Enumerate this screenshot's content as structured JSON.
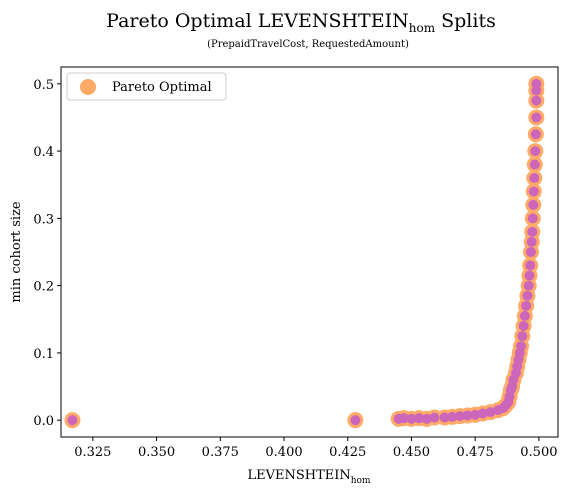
{
  "chart_data": {
    "type": "scatter",
    "title_main": "Pareto Optimal LEVENSHTEIN",
    "title_sub_script": "hom",
    "title_tail": " Splits",
    "subtitle": "(PrepaidTravelCost, RequestedAmount)",
    "xlabel_main": "LEVENSHTEIN",
    "xlabel_sub": "hom",
    "ylabel": "min cohort size",
    "xlim": [
      0.3125,
      0.5075
    ],
    "ylim": [
      -0.025,
      0.525
    ],
    "xticks": [
      0.325,
      0.35,
      0.375,
      0.4,
      0.425,
      0.45,
      0.475,
      0.5
    ],
    "xtick_labels": [
      "0.325",
      "0.350",
      "0.375",
      "0.400",
      "0.425",
      "0.450",
      "0.475",
      "0.500"
    ],
    "yticks": [
      0.0,
      0.1,
      0.2,
      0.3,
      0.4,
      0.5
    ],
    "ytick_labels": [
      "0.0",
      "0.1",
      "0.2",
      "0.3",
      "0.4",
      "0.5"
    ],
    "grid": false,
    "legend": {
      "placement": "top-left",
      "entries": [
        "Pareto Optimal"
      ]
    },
    "colors": {
      "pareto": "#ffaa66",
      "points": "#cc66bb",
      "axis": "#000000"
    },
    "series": [
      {
        "name": "Pareto Optimal",
        "points": [
          [
            0.317,
            0.0
          ],
          [
            0.428,
            0.0
          ],
          [
            0.445,
            0.002
          ],
          [
            0.447,
            0.003
          ],
          [
            0.45,
            0.002
          ],
          [
            0.453,
            0.003
          ],
          [
            0.456,
            0.002
          ],
          [
            0.459,
            0.004
          ],
          [
            0.463,
            0.004
          ],
          [
            0.466,
            0.005
          ],
          [
            0.469,
            0.006
          ],
          [
            0.472,
            0.007
          ],
          [
            0.475,
            0.008
          ],
          [
            0.478,
            0.01
          ],
          [
            0.481,
            0.012
          ],
          [
            0.484,
            0.015
          ],
          [
            0.486,
            0.018
          ],
          [
            0.487,
            0.022
          ],
          [
            0.488,
            0.027
          ],
          [
            0.4885,
            0.035
          ],
          [
            0.489,
            0.045
          ],
          [
            0.4895,
            0.05
          ],
          [
            0.49,
            0.06
          ],
          [
            0.491,
            0.07
          ],
          [
            0.4915,
            0.08
          ],
          [
            0.492,
            0.09
          ],
          [
            0.4925,
            0.1
          ],
          [
            0.493,
            0.11
          ],
          [
            0.4935,
            0.125
          ],
          [
            0.494,
            0.14
          ],
          [
            0.4945,
            0.155
          ],
          [
            0.495,
            0.17
          ],
          [
            0.4955,
            0.185
          ],
          [
            0.496,
            0.2
          ],
          [
            0.4963,
            0.215
          ],
          [
            0.4966,
            0.23
          ],
          [
            0.4969,
            0.25
          ],
          [
            0.4972,
            0.265
          ],
          [
            0.4974,
            0.28
          ],
          [
            0.4976,
            0.3
          ],
          [
            0.4978,
            0.32
          ],
          [
            0.498,
            0.34
          ],
          [
            0.4982,
            0.36
          ],
          [
            0.4984,
            0.38
          ],
          [
            0.4986,
            0.4
          ],
          [
            0.4988,
            0.425
          ],
          [
            0.499,
            0.45
          ],
          [
            0.499,
            0.475
          ],
          [
            0.499,
            0.49
          ],
          [
            0.499,
            0.5
          ]
        ]
      }
    ]
  }
}
